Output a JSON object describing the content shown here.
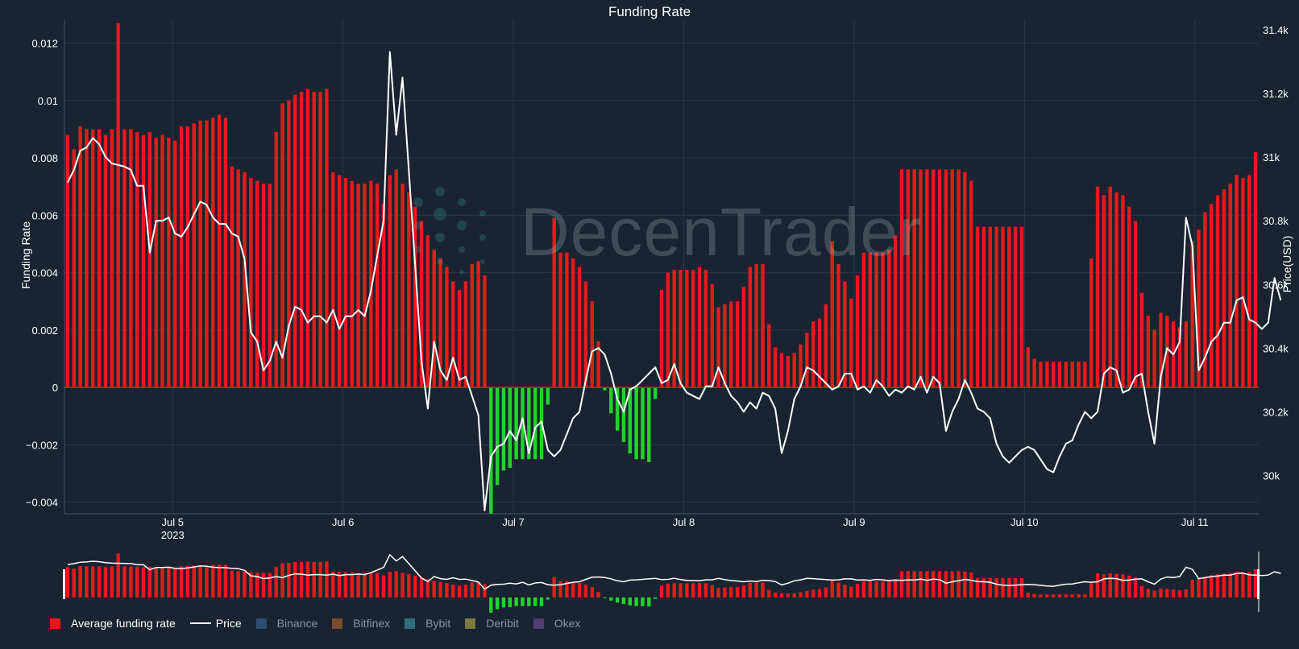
{
  "chart_data": {
    "type": "bar",
    "title": "Funding Rate",
    "ylabel": "Funding Rate",
    "y2label": "Price(USD)",
    "ylim": [
      -0.0044,
      0.0128
    ],
    "y2lim": [
      29880,
      31430
    ],
    "yticks": [
      "0.012",
      "0.01",
      "0.008",
      "0.006",
      "0.004",
      "0.002",
      "0",
      "−0.002",
      "−0.004"
    ],
    "ytick_values": [
      0.012,
      0.01,
      0.008,
      0.006,
      0.004,
      0.002,
      0,
      -0.002,
      -0.004
    ],
    "y2ticks": [
      "31.4k",
      "31.2k",
      "31k",
      "30.8k",
      "30.6k",
      "30.4k",
      "30.2k",
      "30k"
    ],
    "y2tick_values": [
      31400,
      31200,
      31000,
      30800,
      30600,
      30400,
      30200,
      30000
    ],
    "xticks": [
      {
        "label": "Jul 5",
        "sub": "2023",
        "day": 1
      },
      {
        "label": "Jul 6",
        "sub": "",
        "day": 2
      },
      {
        "label": "Jul 7",
        "sub": "",
        "day": 3
      },
      {
        "label": "Jul 8",
        "sub": "",
        "day": 4
      },
      {
        "label": "Jul 9",
        "sub": "",
        "day": 5
      },
      {
        "label": "Jul 10",
        "sub": "",
        "day": 6
      },
      {
        "label": "Jul 11",
        "sub": "",
        "day": 7
      }
    ],
    "x_start_day": 0.365,
    "x_end_day": 7.375,
    "series": [
      {
        "name": "Average funding rate",
        "color": "#e8191b",
        "negative_color": "#21d42b",
        "values": [
          0.0088,
          0.0083,
          0.0091,
          0.009,
          0.009,
          0.009,
          0.0088,
          0.009,
          0.0127,
          0.009,
          0.009,
          0.0089,
          0.0088,
          0.0089,
          0.0087,
          0.0088,
          0.0087,
          0.0086,
          0.0091,
          0.0091,
          0.0092,
          0.0093,
          0.0093,
          0.0094,
          0.0095,
          0.0094,
          0.0077,
          0.0076,
          0.0075,
          0.0073,
          0.0072,
          0.0071,
          0.0071,
          0.0089,
          0.0099,
          0.01,
          0.0102,
          0.0103,
          0.0104,
          0.0103,
          0.0103,
          0.0104,
          0.0075,
          0.0074,
          0.0073,
          0.0072,
          0.0071,
          0.0071,
          0.0072,
          0.0071,
          0.0064,
          0.0074,
          0.0076,
          0.0071,
          0.0068,
          0.0063,
          0.0058,
          0.0053,
          0.0048,
          0.0045,
          0.0042,
          0.0037,
          0.0034,
          0.0037,
          0.0043,
          0.0044,
          0.0039,
          -0.0044,
          -0.0034,
          -0.0029,
          -0.0028,
          -0.0025,
          -0.0025,
          -0.0025,
          -0.0025,
          -0.0025,
          -0.0006,
          0.0059,
          0.0047,
          0.0047,
          0.0045,
          0.0042,
          0.0037,
          0.003,
          0.0016,
          -0.0001,
          -0.0009,
          -0.0015,
          -0.0019,
          -0.0023,
          -0.0025,
          -0.0025,
          -0.0026,
          -0.0004,
          0.0034,
          0.004,
          0.0041,
          0.0041,
          0.0041,
          0.0041,
          0.0042,
          0.0041,
          0.0036,
          0.0028,
          0.0029,
          0.003,
          0.003,
          0.0035,
          0.0042,
          0.0043,
          0.0043,
          0.0022,
          0.0014,
          0.0012,
          0.0011,
          0.0012,
          0.0015,
          0.0019,
          0.0023,
          0.0024,
          0.0029,
          0.0051,
          0.0043,
          0.0037,
          0.0031,
          0.0039,
          0.0047,
          0.0047,
          0.0047,
          0.0047,
          0.0048,
          0.0053,
          0.0076,
          0.0076,
          0.0076,
          0.0076,
          0.0076,
          0.0076,
          0.0076,
          0.0076,
          0.0076,
          0.0076,
          0.0075,
          0.0072,
          0.0056,
          0.0056,
          0.0056,
          0.0056,
          0.0056,
          0.0056,
          0.0056,
          0.0056,
          0.0014,
          0.001,
          0.0009,
          0.0009,
          0.0009,
          0.0009,
          0.0009,
          0.0009,
          0.0009,
          0.0009,
          0.0045,
          0.007,
          0.0067,
          0.007,
          0.0068,
          0.0067,
          0.0063,
          0.0058,
          0.0033,
          0.0025,
          0.002,
          0.0026,
          0.0025,
          0.0023,
          0.0021,
          0.0023,
          0.0051,
          0.0055,
          0.0061,
          0.0064,
          0.0067,
          0.0069,
          0.0071,
          0.0074,
          0.0073,
          0.0074,
          0.0082
        ]
      },
      {
        "name": "Price",
        "color": "#ffffff",
        "values": [
          30920,
          30960,
          31020,
          31030,
          31060,
          31040,
          31000,
          30980,
          30975,
          30970,
          30960,
          30910,
          30910,
          30700,
          30800,
          30800,
          30810,
          30760,
          30750,
          30780,
          30820,
          30860,
          30850,
          30810,
          30790,
          30790,
          30760,
          30750,
          30680,
          30450,
          30420,
          30330,
          30360,
          30420,
          30370,
          30470,
          30530,
          30520,
          30480,
          30500,
          30500,
          30480,
          30520,
          30460,
          30500,
          30500,
          30520,
          30500,
          30580,
          30690,
          30800,
          31330,
          31070,
          31250,
          30960,
          30660,
          30360,
          30210,
          30420,
          30330,
          30300,
          30370,
          30300,
          30310,
          30250,
          30190,
          29890,
          30060,
          30090,
          30100,
          30140,
          30110,
          30180,
          30070,
          30150,
          30170,
          30080,
          30060,
          30080,
          30130,
          30180,
          30200,
          30300,
          30390,
          30400,
          30380,
          30320,
          30240,
          30200,
          30270,
          30280,
          30300,
          30320,
          30340,
          30290,
          30300,
          30350,
          30290,
          30260,
          30250,
          30240,
          30280,
          30280,
          30340,
          30290,
          30250,
          30230,
          30200,
          30230,
          30210,
          30260,
          30250,
          30210,
          30070,
          30140,
          30240,
          30280,
          30340,
          30330,
          30310,
          30290,
          30270,
          30280,
          30320,
          30320,
          30270,
          30280,
          30260,
          30300,
          30280,
          30250,
          30270,
          30260,
          30280,
          30270,
          30310,
          30260,
          30310,
          30290,
          30140,
          30200,
          30240,
          30300,
          30260,
          30210,
          30200,
          30180,
          30100,
          30060,
          30040,
          30060,
          30080,
          30090,
          30080,
          30050,
          30020,
          30010,
          30060,
          30100,
          30110,
          30160,
          30200,
          30180,
          30200,
          30320,
          30340,
          30330,
          30260,
          30270,
          30310,
          30320,
          30200,
          30100,
          30310,
          30400,
          30380,
          30420,
          30810,
          30720,
          30330,
          30370,
          30420,
          30440,
          30480,
          30480,
          30550,
          30560,
          30490,
          30480,
          30460,
          30480,
          30620,
          30550
        ]
      }
    ],
    "legend": [
      {
        "name": "Average funding rate",
        "color": "#e8191b",
        "kind": "square",
        "active": true
      },
      {
        "name": "Price",
        "color": "#ffffff",
        "kind": "line",
        "active": true
      },
      {
        "name": "Binance",
        "color": "#2d4d6e",
        "kind": "square",
        "active": false
      },
      {
        "name": "Bitfinex",
        "color": "#7a4d2e",
        "kind": "square",
        "active": false
      },
      {
        "name": "Bybit",
        "color": "#2f6f7a",
        "kind": "square",
        "active": false
      },
      {
        "name": "Deribit",
        "color": "#7a7a3e",
        "kind": "square",
        "active": false
      },
      {
        "name": "Okex",
        "color": "#4f3f75",
        "kind": "square",
        "active": false
      }
    ],
    "legend_position": "bottom-left",
    "grid": true,
    "rangeslider": true
  },
  "watermark": {
    "text": "DecenTrader",
    "icon": "decentrader-logo-icon"
  }
}
